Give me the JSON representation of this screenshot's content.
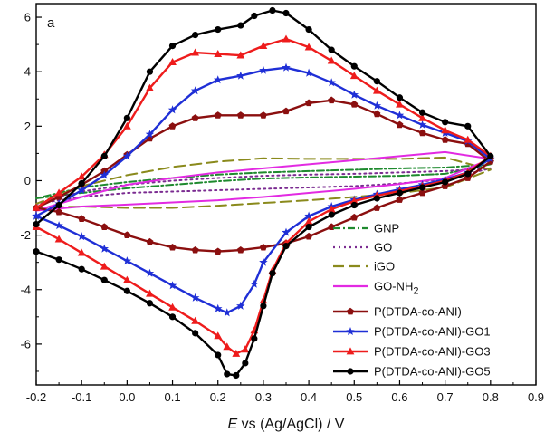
{
  "panel_label": "a",
  "chart_data": {
    "type": "line",
    "xlabel_italic": "E",
    "xlabel_rest": " vs (Ag/AgCl) / V",
    "ylabel": "",
    "xlim": [
      -0.2,
      0.9
    ],
    "ylim": [
      -7.5,
      6.5
    ],
    "xticks": [
      -0.2,
      -0.1,
      0.0,
      0.1,
      0.2,
      0.3,
      0.4,
      0.5,
      0.6,
      0.7,
      0.8,
      0.9
    ],
    "xtick_labels": [
      "-0.2",
      "-0.1",
      "0.0",
      "0.1",
      "0.2",
      "0.3",
      "0.4",
      "0.5",
      "0.6",
      "0.7",
      "0.8",
      "0.9"
    ],
    "yticks": [
      -6,
      -4,
      -2,
      0,
      2,
      4,
      6
    ],
    "ytick_labels": [
      "-6",
      "-4",
      "-2",
      "0",
      "2",
      "4",
      "6"
    ],
    "legend_position": "bottom-right",
    "grid": false,
    "series": [
      {
        "name": "GNP",
        "name_sub": "",
        "color": "#1e8a2e",
        "dash": "8,3,2,3",
        "marker": "none",
        "forward": [
          [
            -0.2,
            -0.65
          ],
          [
            -0.1,
            -0.45
          ],
          [
            0.0,
            -0.28
          ],
          [
            0.1,
            -0.15
          ],
          [
            0.2,
            -0.02
          ],
          [
            0.3,
            0.08
          ],
          [
            0.4,
            0.12
          ],
          [
            0.5,
            0.15
          ],
          [
            0.6,
            0.18
          ],
          [
            0.7,
            0.25
          ],
          [
            0.8,
            0.6
          ]
        ],
        "reverse": [
          [
            0.8,
            0.6
          ],
          [
            0.7,
            0.48
          ],
          [
            0.6,
            0.45
          ],
          [
            0.5,
            0.4
          ],
          [
            0.4,
            0.35
          ],
          [
            0.3,
            0.3
          ],
          [
            0.2,
            0.22
          ],
          [
            0.1,
            0.1
          ],
          [
            0.0,
            -0.05
          ],
          [
            -0.1,
            -0.25
          ],
          [
            -0.2,
            -0.65
          ]
        ]
      },
      {
        "name": "GO",
        "name_sub": "",
        "color": "#7b2c91",
        "dash": "2,4",
        "marker": "none",
        "forward": [
          [
            -0.2,
            -0.85
          ],
          [
            -0.1,
            -0.6
          ],
          [
            0.0,
            -0.45
          ],
          [
            0.1,
            -0.4
          ],
          [
            0.2,
            -0.35
          ],
          [
            0.3,
            -0.3
          ],
          [
            0.4,
            -0.25
          ],
          [
            0.5,
            -0.2
          ],
          [
            0.6,
            -0.1
          ],
          [
            0.7,
            0.05
          ],
          [
            0.8,
            0.45
          ]
        ],
        "reverse": [
          [
            0.8,
            0.45
          ],
          [
            0.7,
            0.35
          ],
          [
            0.6,
            0.3
          ],
          [
            0.5,
            0.25
          ],
          [
            0.4,
            0.22
          ],
          [
            0.3,
            0.18
          ],
          [
            0.2,
            0.1
          ],
          [
            0.1,
            0.0
          ],
          [
            0.0,
            -0.15
          ],
          [
            -0.1,
            -0.4
          ],
          [
            -0.2,
            -0.85
          ]
        ]
      },
      {
        "name": "iGO",
        "name_sub": "",
        "color": "#8a8a1c",
        "dash": "12,6",
        "marker": "none",
        "forward": [
          [
            -0.2,
            -1.0
          ],
          [
            -0.1,
            -0.95
          ],
          [
            0.0,
            -1.0
          ],
          [
            0.1,
            -1.0
          ],
          [
            0.2,
            -0.92
          ],
          [
            0.3,
            -0.82
          ],
          [
            0.4,
            -0.72
          ],
          [
            0.5,
            -0.6
          ],
          [
            0.6,
            -0.45
          ],
          [
            0.7,
            -0.25
          ],
          [
            0.8,
            0.4
          ]
        ],
        "reverse": [
          [
            0.8,
            0.95
          ],
          [
            0.7,
            0.85
          ],
          [
            0.6,
            0.8
          ],
          [
            0.5,
            0.8
          ],
          [
            0.4,
            0.8
          ],
          [
            0.3,
            0.82
          ],
          [
            0.2,
            0.7
          ],
          [
            0.1,
            0.5
          ],
          [
            0.0,
            0.2
          ],
          [
            -0.1,
            -0.2
          ],
          [
            -0.2,
            -0.85
          ]
        ]
      },
      {
        "name": "GO-NH",
        "name_sub": "2",
        "color": "#e22ae2",
        "dash": "",
        "marker": "none",
        "forward": [
          [
            -0.2,
            -1.1
          ],
          [
            -0.1,
            -0.95
          ],
          [
            0.0,
            -0.88
          ],
          [
            0.1,
            -0.8
          ],
          [
            0.2,
            -0.72
          ],
          [
            0.3,
            -0.6
          ],
          [
            0.4,
            -0.45
          ],
          [
            0.5,
            -0.3
          ],
          [
            0.6,
            -0.12
          ],
          [
            0.7,
            0.1
          ],
          [
            0.8,
            0.8
          ]
        ],
        "reverse": [
          [
            0.8,
            1.3
          ],
          [
            0.7,
            1.05
          ],
          [
            0.6,
            0.9
          ],
          [
            0.5,
            0.75
          ],
          [
            0.4,
            0.6
          ],
          [
            0.3,
            0.45
          ],
          [
            0.2,
            0.3
          ],
          [
            0.1,
            0.1
          ],
          [
            0.0,
            -0.15
          ],
          [
            -0.1,
            -0.6
          ],
          [
            -0.2,
            -1.1
          ]
        ]
      },
      {
        "name": "P(DTDA-co-ANI)",
        "name_sub": "",
        "color": "#8b0f0f",
        "dash": "",
        "marker": "pentagon",
        "forward": [
          [
            -0.2,
            -1.0
          ],
          [
            -0.15,
            -1.15
          ],
          [
            -0.1,
            -1.4
          ],
          [
            -0.05,
            -1.7
          ],
          [
            0.0,
            -2.0
          ],
          [
            0.05,
            -2.25
          ],
          [
            0.1,
            -2.45
          ],
          [
            0.15,
            -2.55
          ],
          [
            0.2,
            -2.6
          ],
          [
            0.25,
            -2.55
          ],
          [
            0.3,
            -2.45
          ],
          [
            0.35,
            -2.3
          ],
          [
            0.4,
            -2.05
          ],
          [
            0.45,
            -1.7
          ],
          [
            0.5,
            -1.35
          ],
          [
            0.55,
            -1.0
          ],
          [
            0.6,
            -0.7
          ],
          [
            0.65,
            -0.45
          ],
          [
            0.7,
            -0.2
          ],
          [
            0.75,
            0.1
          ],
          [
            0.8,
            0.7
          ]
        ],
        "reverse": [
          [
            0.8,
            1.2
          ],
          [
            0.75,
            1.35
          ],
          [
            0.7,
            1.5
          ],
          [
            0.65,
            1.75
          ],
          [
            0.6,
            2.05
          ],
          [
            0.55,
            2.45
          ],
          [
            0.5,
            2.8
          ],
          [
            0.45,
            2.95
          ],
          [
            0.4,
            2.85
          ],
          [
            0.35,
            2.55
          ],
          [
            0.3,
            2.4
          ],
          [
            0.25,
            2.4
          ],
          [
            0.2,
            2.4
          ],
          [
            0.15,
            2.3
          ],
          [
            0.1,
            2.0
          ],
          [
            0.05,
            1.55
          ],
          [
            0.0,
            0.95
          ],
          [
            -0.05,
            0.35
          ],
          [
            -0.1,
            -0.15
          ],
          [
            -0.15,
            -0.6
          ],
          [
            -0.2,
            -1.0
          ]
        ]
      },
      {
        "name": "P(DTDA-co-ANI)-GO1",
        "name_sub": "",
        "color": "#1f2fd6",
        "dash": "",
        "marker": "star",
        "forward": [
          [
            -0.2,
            -1.3
          ],
          [
            -0.15,
            -1.65
          ],
          [
            -0.1,
            -2.05
          ],
          [
            -0.05,
            -2.5
          ],
          [
            0.0,
            -2.95
          ],
          [
            0.05,
            -3.4
          ],
          [
            0.1,
            -3.85
          ],
          [
            0.15,
            -4.3
          ],
          [
            0.2,
            -4.7
          ],
          [
            0.22,
            -4.85
          ],
          [
            0.25,
            -4.6
          ],
          [
            0.28,
            -3.8
          ],
          [
            0.3,
            -3.0
          ],
          [
            0.35,
            -1.9
          ],
          [
            0.4,
            -1.3
          ],
          [
            0.45,
            -0.95
          ],
          [
            0.5,
            -0.7
          ],
          [
            0.55,
            -0.5
          ],
          [
            0.6,
            -0.32
          ],
          [
            0.65,
            -0.15
          ],
          [
            0.7,
            0.05
          ],
          [
            0.75,
            0.3
          ],
          [
            0.8,
            0.8
          ]
        ],
        "reverse": [
          [
            0.8,
            1.25
          ],
          [
            0.75,
            1.45
          ],
          [
            0.7,
            1.75
          ],
          [
            0.65,
            2.05
          ],
          [
            0.6,
            2.4
          ],
          [
            0.55,
            2.75
          ],
          [
            0.5,
            3.15
          ],
          [
            0.45,
            3.6
          ],
          [
            0.4,
            3.95
          ],
          [
            0.35,
            4.15
          ],
          [
            0.3,
            4.05
          ],
          [
            0.25,
            3.85
          ],
          [
            0.2,
            3.7
          ],
          [
            0.15,
            3.3
          ],
          [
            0.1,
            2.6
          ],
          [
            0.05,
            1.7
          ],
          [
            0.0,
            0.9
          ],
          [
            -0.05,
            0.2
          ],
          [
            -0.1,
            -0.35
          ],
          [
            -0.15,
            -0.85
          ],
          [
            -0.2,
            -1.3
          ]
        ]
      },
      {
        "name": "P(DTDA-co-ANI)-GO3",
        "name_sub": "",
        "color": "#ee1c1c",
        "dash": "",
        "marker": "triangle",
        "forward": [
          [
            -0.2,
            -1.7
          ],
          [
            -0.15,
            -2.15
          ],
          [
            -0.1,
            -2.65
          ],
          [
            -0.05,
            -3.15
          ],
          [
            0.0,
            -3.65
          ],
          [
            0.05,
            -4.15
          ],
          [
            0.1,
            -4.65
          ],
          [
            0.15,
            -5.15
          ],
          [
            0.2,
            -5.7
          ],
          [
            0.22,
            -6.1
          ],
          [
            0.24,
            -6.35
          ],
          [
            0.26,
            -6.2
          ],
          [
            0.28,
            -5.5
          ],
          [
            0.3,
            -4.4
          ],
          [
            0.32,
            -3.3
          ],
          [
            0.35,
            -2.3
          ],
          [
            0.4,
            -1.5
          ],
          [
            0.45,
            -1.05
          ],
          [
            0.5,
            -0.75
          ],
          [
            0.55,
            -0.55
          ],
          [
            0.6,
            -0.38
          ],
          [
            0.65,
            -0.2
          ],
          [
            0.7,
            0.0
          ],
          [
            0.75,
            0.3
          ],
          [
            0.8,
            0.9
          ]
        ],
        "reverse": [
          [
            0.8,
            1.3
          ],
          [
            0.75,
            1.5
          ],
          [
            0.7,
            1.85
          ],
          [
            0.65,
            2.3
          ],
          [
            0.6,
            2.8
          ],
          [
            0.55,
            3.3
          ],
          [
            0.5,
            3.85
          ],
          [
            0.45,
            4.4
          ],
          [
            0.4,
            4.9
          ],
          [
            0.35,
            5.2
          ],
          [
            0.3,
            4.95
          ],
          [
            0.25,
            4.6
          ],
          [
            0.2,
            4.65
          ],
          [
            0.15,
            4.7
          ],
          [
            0.1,
            4.35
          ],
          [
            0.05,
            3.4
          ],
          [
            0.0,
            2.0
          ],
          [
            -0.05,
            0.95
          ],
          [
            -0.1,
            0.15
          ],
          [
            -0.15,
            -0.45
          ],
          [
            -0.2,
            -1.0
          ]
        ]
      },
      {
        "name": "P(DTDA-co-ANI)-GO5",
        "name_sub": "",
        "color": "#000000",
        "dash": "",
        "marker": "circle",
        "forward": [
          [
            -0.2,
            -2.6
          ],
          [
            -0.15,
            -2.9
          ],
          [
            -0.1,
            -3.25
          ],
          [
            -0.05,
            -3.65
          ],
          [
            0.0,
            -4.05
          ],
          [
            0.05,
            -4.5
          ],
          [
            0.1,
            -5.0
          ],
          [
            0.15,
            -5.6
          ],
          [
            0.2,
            -6.4
          ],
          [
            0.22,
            -7.1
          ],
          [
            0.24,
            -7.15
          ],
          [
            0.26,
            -6.7
          ],
          [
            0.28,
            -5.8
          ],
          [
            0.3,
            -4.6
          ],
          [
            0.32,
            -3.4
          ],
          [
            0.35,
            -2.4
          ],
          [
            0.4,
            -1.7
          ],
          [
            0.45,
            -1.25
          ],
          [
            0.5,
            -0.9
          ],
          [
            0.55,
            -0.65
          ],
          [
            0.6,
            -0.45
          ],
          [
            0.65,
            -0.25
          ],
          [
            0.7,
            -0.05
          ],
          [
            0.75,
            0.25
          ],
          [
            0.8,
            0.9
          ]
        ],
        "reverse": [
          [
            0.8,
            1.95
          ],
          [
            0.75,
            2.0
          ],
          [
            0.7,
            2.15
          ],
          [
            0.65,
            2.5
          ],
          [
            0.6,
            3.05
          ],
          [
            0.55,
            3.65
          ],
          [
            0.5,
            4.2
          ],
          [
            0.45,
            4.8
          ],
          [
            0.4,
            5.55
          ],
          [
            0.35,
            6.15
          ],
          [
            0.32,
            6.25
          ],
          [
            0.28,
            6.05
          ],
          [
            0.25,
            5.7
          ],
          [
            0.2,
            5.55
          ],
          [
            0.15,
            5.35
          ],
          [
            0.1,
            4.95
          ],
          [
            0.05,
            4.0
          ],
          [
            0.0,
            2.3
          ],
          [
            -0.05,
            0.9
          ],
          [
            -0.1,
            -0.1
          ],
          [
            -0.15,
            -0.9
          ],
          [
            -0.2,
            -1.6
          ]
        ]
      }
    ]
  }
}
